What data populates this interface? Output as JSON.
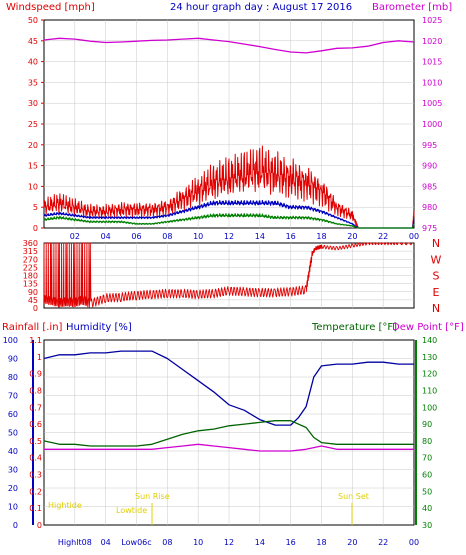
{
  "colors": {
    "wind": "#e00000",
    "gust_avg": "#0000c0",
    "wind_low": "#008000",
    "barometer": "#d000d0",
    "winddir": "#e00000",
    "rain": "#e00000",
    "humidity": "#0000a0",
    "temperature": "#006400",
    "dewpoint": "#d000d0",
    "astro": "#e0d000",
    "frame": "#000000",
    "grid": "#c8c8c8",
    "axis_right_bottom": "#008000"
  },
  "chart_data": [
    {
      "type": "line",
      "title": "24 hour graph day : August 17 2016",
      "left_label": "Windspeed [mph]",
      "right_label": "Barometer [mb]",
      "x_ticks": [
        "02",
        "04",
        "06",
        "08",
        "10",
        "12",
        "14",
        "16",
        "18",
        "20",
        "22",
        "00"
      ],
      "x_range_hours": [
        0,
        24
      ],
      "y_left_range": [
        0,
        50
      ],
      "y_left_ticks": [
        "0",
        "5",
        "10",
        "15",
        "20",
        "25",
        "30",
        "35",
        "40",
        "45",
        "50"
      ],
      "y_right_range": [
        975,
        1025
      ],
      "y_right_ticks": [
        "975",
        "980",
        "985",
        "990",
        "995",
        "1000",
        "1005",
        "1010",
        "1015",
        "1020",
        "1025"
      ],
      "series": [
        {
          "key": "gust",
          "color_key": "wind",
          "x": [
            0,
            1,
            2,
            3,
            4,
            5,
            6,
            7,
            8,
            9,
            10,
            11,
            12,
            13,
            14,
            15,
            16,
            17,
            18,
            19,
            20,
            20.4,
            22,
            23.9,
            24
          ],
          "y": [
            5,
            6,
            5,
            4,
            4,
            4.5,
            4.5,
            4.5,
            5,
            7,
            9,
            11,
            12,
            13,
            14,
            13,
            12,
            11,
            9,
            5,
            3,
            0,
            0,
            0,
            4
          ]
        },
        {
          "key": "avg",
          "color_key": "gust_avg",
          "x": [
            0,
            1,
            2,
            3,
            4,
            5,
            6,
            7,
            8,
            9,
            10,
            11,
            12,
            13,
            14,
            15,
            16,
            17,
            18,
            19,
            20,
            20.4,
            22,
            23.9,
            24
          ],
          "y": [
            3,
            3.5,
            3,
            2.5,
            2.5,
            2.5,
            2.5,
            2.5,
            3,
            4,
            5,
            6,
            6,
            6,
            6,
            6,
            5,
            5,
            4,
            2.5,
            1,
            0,
            0,
            0,
            2
          ]
        },
        {
          "key": "low",
          "color_key": "wind_low",
          "x": [
            0,
            1,
            2,
            3,
            4,
            5,
            6,
            7,
            8,
            9,
            10,
            11,
            12,
            13,
            14,
            15,
            16,
            17,
            18,
            19,
            20,
            20.4,
            22,
            23.9,
            24
          ],
          "y": [
            2,
            2.5,
            2,
            1.5,
            1.5,
            1.5,
            1,
            1,
            1.5,
            2,
            2.5,
            3,
            3,
            3,
            3,
            2.5,
            2.5,
            2.5,
            2,
            1,
            0.5,
            0,
            0,
            0,
            1
          ]
        },
        {
          "key": "barometer",
          "color_key": "barometer",
          "axis": "right",
          "x": [
            0,
            1,
            2,
            3,
            4,
            5,
            6,
            7,
            8,
            9,
            10,
            11,
            12,
            13,
            14,
            15,
            16,
            17,
            18,
            19,
            20,
            21,
            22,
            23,
            24
          ],
          "y": [
            1020.2,
            1020.6,
            1020.4,
            1019.9,
            1019.6,
            1019.7,
            1019.9,
            1020.1,
            1020.2,
            1020.4,
            1020.6,
            1020.2,
            1019.8,
            1019.2,
            1018.6,
            1017.9,
            1017.3,
            1017.1,
            1017.6,
            1018.2,
            1018.3,
            1018.7,
            1019.6,
            1020.0,
            1019.7
          ]
        }
      ]
    },
    {
      "type": "line",
      "left_ticks": [
        "0",
        "45",
        "90",
        "135",
        "180",
        "225",
        "270",
        "315",
        "360"
      ],
      "right_labels": [
        "N",
        "W",
        "S",
        "E",
        "N"
      ],
      "y_range": [
        0,
        360
      ],
      "series": [
        {
          "key": "winddir",
          "color_key": "winddir",
          "x": [
            0,
            0.5,
            1,
            1.5,
            2,
            2.5,
            3,
            4,
            5,
            6,
            7,
            8,
            9,
            10,
            11,
            12,
            13,
            14,
            15,
            16,
            17,
            17.4,
            17.6,
            18,
            19,
            20,
            21,
            22,
            23,
            23.9
          ],
          "y": [
            50,
            40,
            30,
            35,
            30,
            45,
            25,
            55,
            60,
            70,
            75,
            80,
            80,
            75,
            80,
            95,
            90,
            85,
            85,
            90,
            100,
            300,
            330,
            340,
            330,
            345,
            360,
            360,
            360,
            360
          ]
        }
      ]
    },
    {
      "type": "line",
      "left_label_rain": "Rainfall [.in]",
      "left_label_humidity": "Humidity [%]",
      "right_label_temp": "Temperature [°F]",
      "right_label_dew": "Dew Point [°F]",
      "x_ticks": [
        "Highlt08",
        "04",
        "Low06c",
        "08",
        "10",
        "12",
        "14",
        "16",
        "18",
        "20",
        "22",
        "00"
      ],
      "rain_ticks": [
        "0",
        "0.1",
        "0.2",
        "0.3",
        "0.4",
        "0.5",
        "0.6",
        "0.7",
        "0.8",
        "0.9",
        "1",
        "1.1"
      ],
      "humidity_ticks": [
        "0",
        "10",
        "20",
        "30",
        "40",
        "50",
        "60",
        "70",
        "80",
        "90",
        "100"
      ],
      "temp_ticks": [
        "30",
        "40",
        "50",
        "60",
        "70",
        "80",
        "90",
        "100",
        "110",
        "120",
        "130",
        "140"
      ],
      "humidity_range": [
        0,
        100
      ],
      "temp_range": [
        30,
        140
      ],
      "annotations": [
        "Hightide",
        "Lowtide",
        "Sun Rise",
        "Sun Set"
      ],
      "series": [
        {
          "key": "humidity",
          "color_key": "humidity",
          "x": [
            0,
            1,
            2,
            3,
            4,
            5,
            6,
            7,
            8,
            9,
            10,
            11,
            12,
            13,
            14,
            15,
            16,
            16.5,
            17,
            17.5,
            18,
            19,
            20,
            21,
            22,
            23,
            24
          ],
          "y": [
            90,
            92,
            92,
            93,
            93,
            94,
            94,
            94,
            90,
            84,
            78,
            72,
            65,
            62,
            57,
            54,
            54,
            58,
            64,
            80,
            86,
            87,
            87,
            88,
            88,
            87,
            87
          ]
        },
        {
          "key": "temperature",
          "color_key": "temperature",
          "x": [
            0,
            1,
            2,
            3,
            4,
            5,
            6,
            7,
            8,
            9,
            10,
            11,
            12,
            13,
            14,
            15,
            16,
            17,
            17.5,
            18,
            19,
            20,
            21,
            22,
            23,
            24
          ],
          "y": [
            80,
            78,
            78,
            77,
            77,
            77,
            77,
            78,
            81,
            84,
            86,
            87,
            89,
            90,
            91,
            92,
            92,
            88,
            82,
            79,
            78,
            78,
            78,
            78,
            78,
            78
          ]
        },
        {
          "key": "dewpoint",
          "color_key": "dewpoint",
          "x": [
            0,
            1,
            2,
            3,
            4,
            5,
            6,
            7,
            8,
            9,
            10,
            11,
            12,
            13,
            14,
            15,
            16,
            17,
            18,
            19,
            20,
            21,
            22,
            23,
            24
          ],
          "y": [
            75,
            75,
            75,
            75,
            75,
            75,
            75,
            75,
            76,
            77,
            78,
            77,
            76,
            75,
            74,
            74,
            74,
            75,
            77,
            75,
            75,
            75,
            75,
            75,
            75
          ]
        }
      ]
    }
  ]
}
